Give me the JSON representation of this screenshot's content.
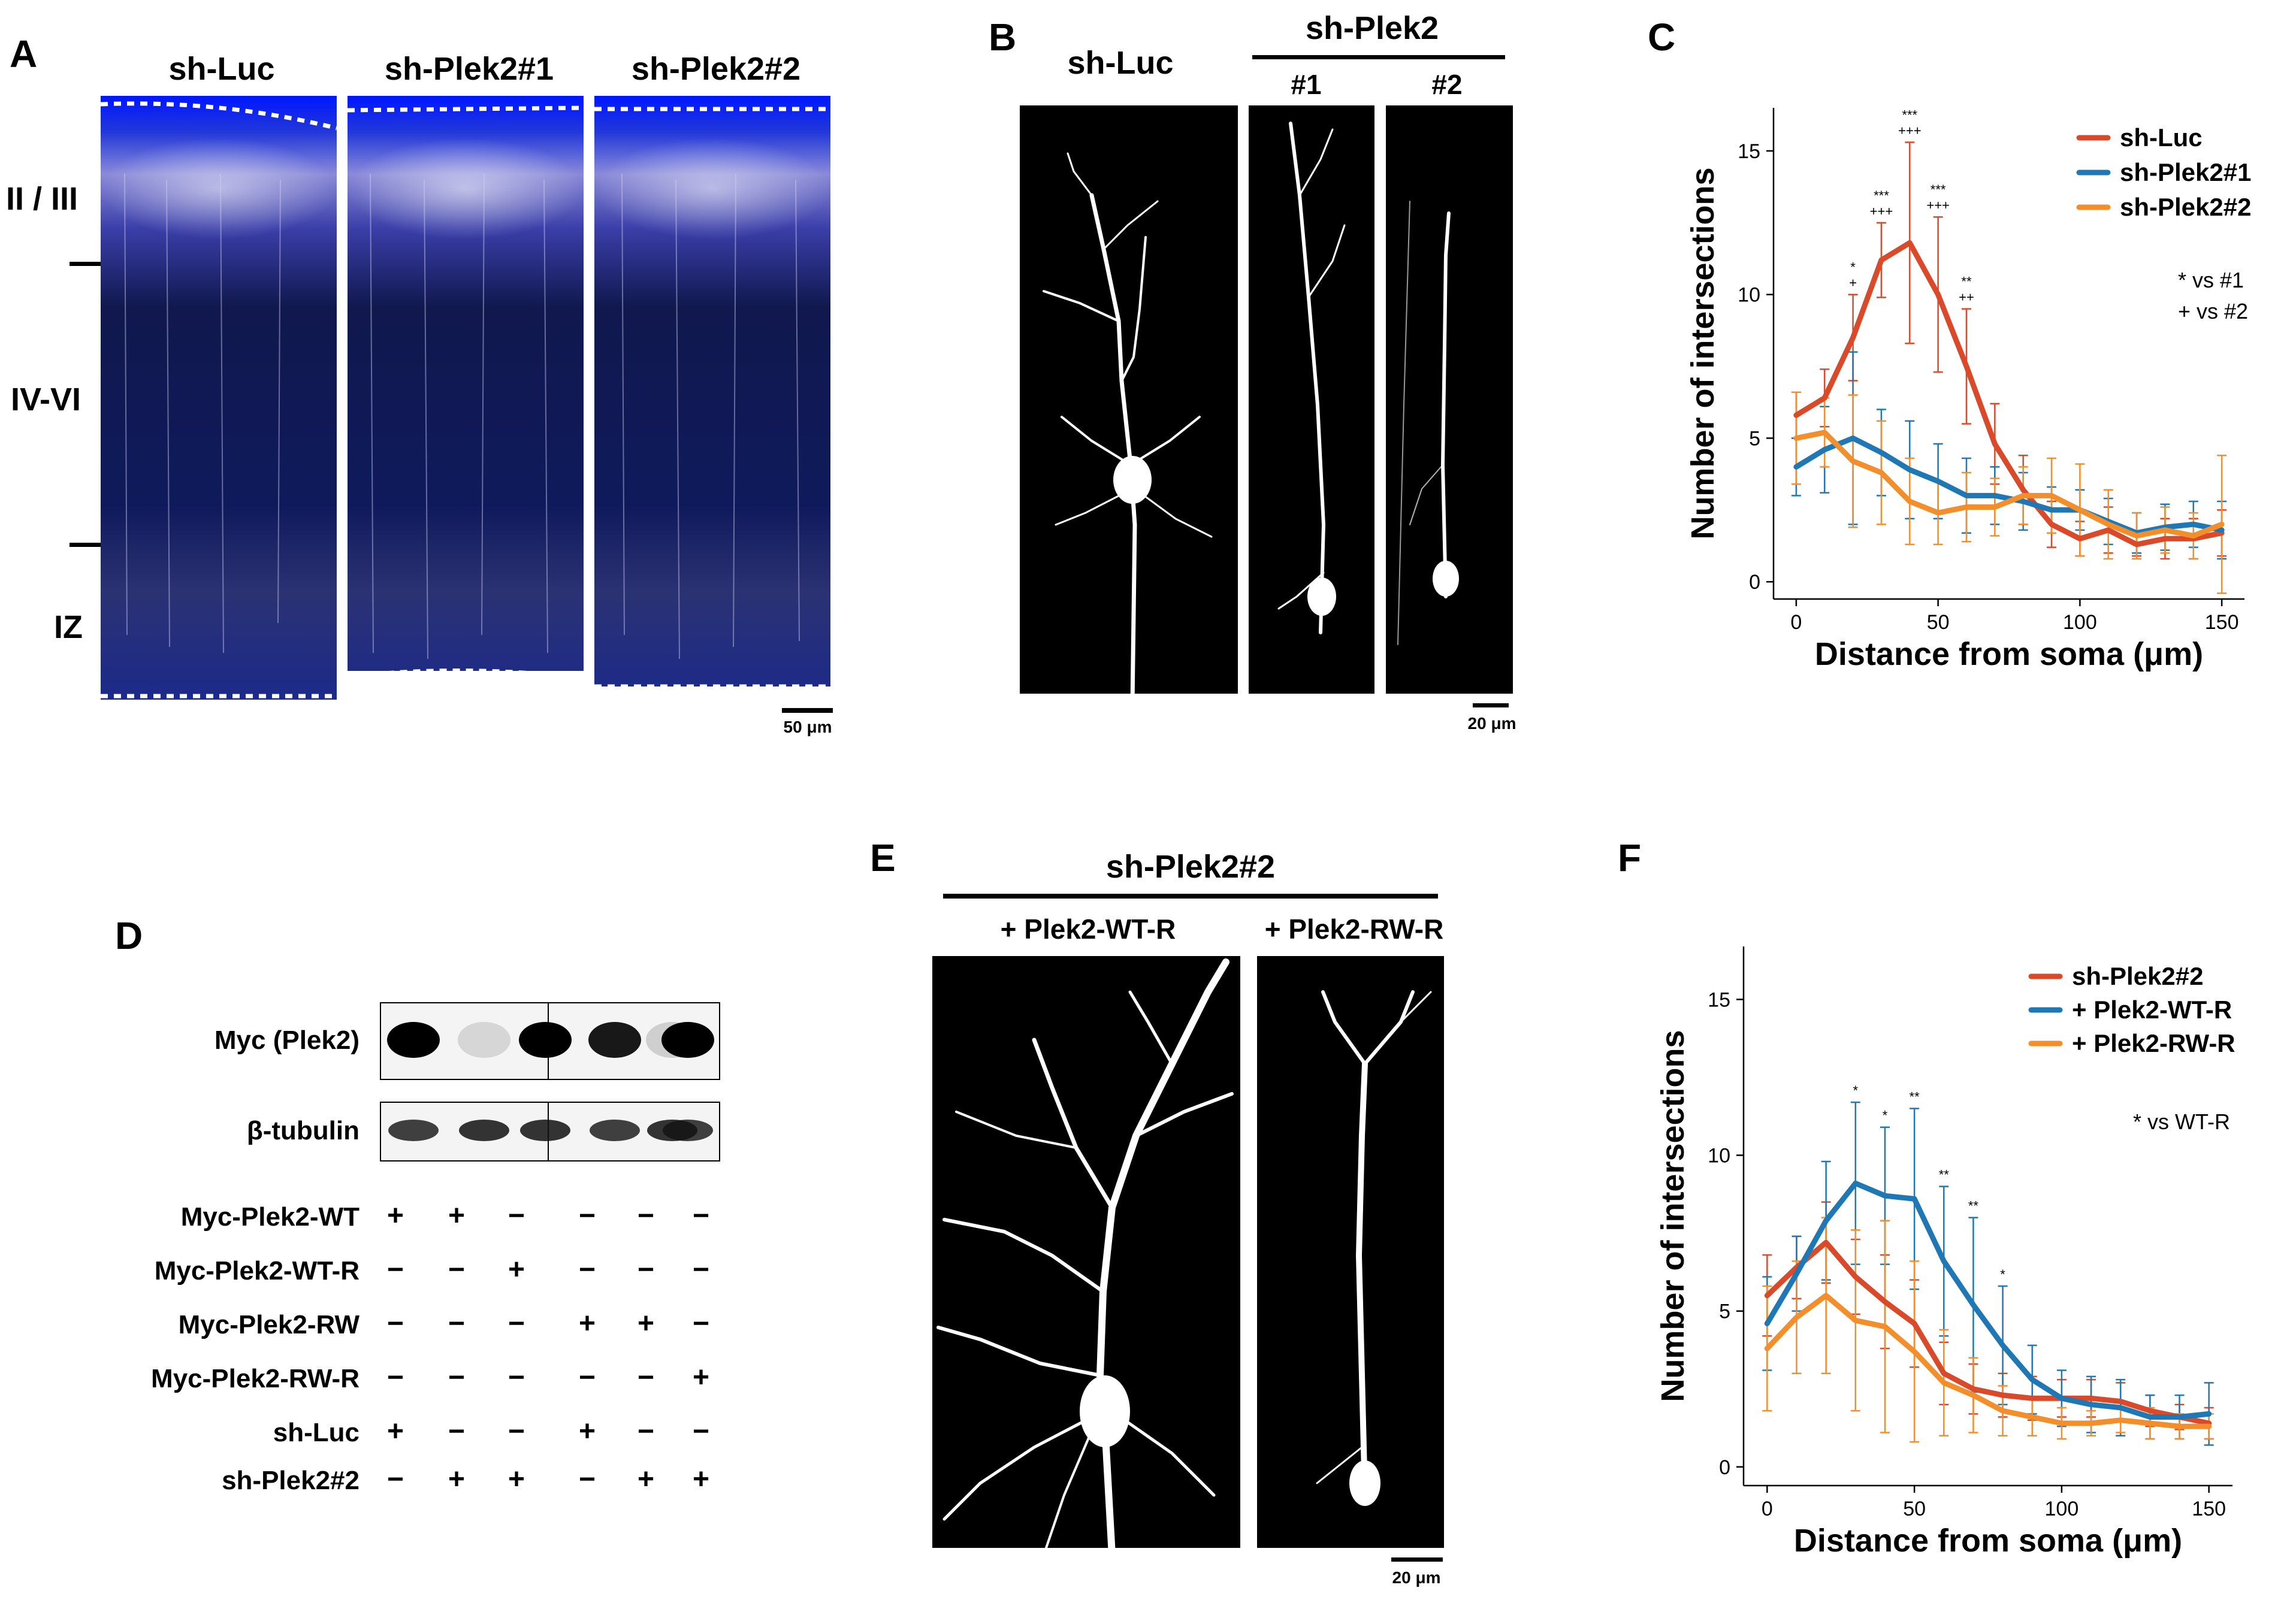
{
  "panel_letters": {
    "a": "A",
    "b": "B",
    "c": "C",
    "d": "D",
    "e": "E",
    "f": "F"
  },
  "panel_a": {
    "headers": [
      "sh-Luc",
      "sh-Plek2#1",
      "sh-Plek2#2"
    ],
    "layers": [
      "II / III",
      "IV-VI",
      "IZ"
    ],
    "scale_bar": "50 μm"
  },
  "panel_b": {
    "header_luc": "sh-Luc",
    "header_group": "sh-Plek2",
    "sub_1": "#1",
    "sub_2": "#2",
    "scale_bar": "20 μm"
  },
  "panel_d": {
    "blot_labels": [
      "Myc (Plek2)",
      "β-tubulin"
    ],
    "conditions": [
      {
        "label": "Myc-Plek2-WT",
        "values": [
          "+",
          "+",
          "−",
          "−",
          "−",
          "−"
        ]
      },
      {
        "label": "Myc-Plek2-WT-R",
        "values": [
          "−",
          "−",
          "+",
          "−",
          "−",
          "−"
        ]
      },
      {
        "label": "Myc-Plek2-RW",
        "values": [
          "−",
          "−",
          "−",
          "+",
          "+",
          "−"
        ]
      },
      {
        "label": "Myc-Plek2-RW-R",
        "values": [
          "−",
          "−",
          "−",
          "−",
          "−",
          "+"
        ]
      },
      {
        "label": "sh-Luc",
        "values": [
          "+",
          "−",
          "−",
          "+",
          "−",
          "−"
        ]
      },
      {
        "label": "sh-Plek2#2",
        "values": [
          "−",
          "+",
          "+",
          "−",
          "+",
          "+"
        ]
      }
    ],
    "myc_intensity": [
      1.0,
      0.12,
      1.0,
      0.9,
      0.15,
      1.0
    ],
    "tubulin_intensity": [
      0.8,
      0.85,
      0.85,
      0.8,
      0.85,
      0.8
    ]
  },
  "panel_e": {
    "header": "sh-Plek2#2",
    "sub_1": "+ Plek2-WT-R",
    "sub_2": "+ Plek2-RW-R",
    "scale_bar": "20 μm"
  },
  "colors": {
    "red": "#d94a2b",
    "blue": "#1f78b4",
    "orange": "#f28e2b",
    "dapi": "#1c2fb8"
  },
  "chart_data": [
    {
      "id": "C",
      "type": "line",
      "xlabel": "Distance from soma (μm)",
      "ylabel": "Number of intersections",
      "xlim": [
        -8,
        158
      ],
      "ylim": [
        -0.6,
        16.5
      ],
      "xticks": [
        0,
        50,
        100,
        150
      ],
      "yticks": [
        0,
        5,
        10,
        15
      ],
      "legend_position": "top-right",
      "x": [
        0,
        10,
        20,
        30,
        40,
        50,
        60,
        70,
        80,
        90,
        100,
        110,
        120,
        130,
        140,
        150
      ],
      "series": [
        {
          "name": "sh-Luc",
          "color": "#d94a2b",
          "values": [
            5.8,
            6.4,
            8.5,
            11.2,
            11.8,
            10.0,
            7.5,
            4.8,
            3.2,
            2.0,
            1.5,
            1.8,
            1.3,
            1.5,
            1.5,
            1.7
          ],
          "err": [
            0.8,
            1.0,
            1.5,
            1.3,
            3.5,
            2.7,
            2.0,
            1.4,
            1.2,
            0.8,
            0.6,
            0.8,
            0.4,
            0.7,
            0.7,
            0.8
          ]
        },
        {
          "name": "sh-Plek2#1",
          "color": "#1f78b4",
          "values": [
            4.0,
            4.6,
            5.0,
            4.5,
            3.9,
            3.5,
            3.0,
            3.0,
            2.8,
            2.5,
            2.5,
            2.1,
            1.7,
            1.9,
            2.0,
            1.8
          ],
          "err": [
            1.0,
            1.5,
            3.0,
            1.5,
            1.7,
            1.3,
            1.3,
            1.0,
            1.0,
            0.8,
            0.7,
            0.8,
            0.7,
            0.8,
            0.8,
            1.0
          ]
        },
        {
          "name": "sh-Plek2#2",
          "color": "#f28e2b",
          "values": [
            5.0,
            5.2,
            4.2,
            3.8,
            2.8,
            2.4,
            2.6,
            2.6,
            3.0,
            3.0,
            2.5,
            2.0,
            1.6,
            1.8,
            1.6,
            2.0
          ],
          "err": [
            1.6,
            1.2,
            2.3,
            1.8,
            1.5,
            1.1,
            1.2,
            1.0,
            1.0,
            1.3,
            1.6,
            1.2,
            0.8,
            0.8,
            0.8,
            2.4
          ]
        }
      ],
      "significance": [
        {
          "x": 20,
          "marks": [
            "*",
            "+"
          ]
        },
        {
          "x": 30,
          "marks": [
            "***",
            "+++"
          ]
        },
        {
          "x": 40,
          "marks": [
            "***",
            "+++"
          ]
        },
        {
          "x": 50,
          "marks": [
            "***",
            "+++"
          ]
        },
        {
          "x": 60,
          "marks": [
            "**",
            "++"
          ]
        }
      ],
      "annotations": [
        "* vs #1",
        "+ vs #2"
      ]
    },
    {
      "id": "F",
      "type": "line",
      "xlabel": "Distance from soma (μm)",
      "ylabel": "Number of intersections",
      "xlim": [
        -8,
        158
      ],
      "ylim": [
        -0.6,
        16.7
      ],
      "xticks": [
        0,
        50,
        100,
        150
      ],
      "yticks": [
        0,
        5,
        10,
        15
      ],
      "legend_position": "top-right",
      "x": [
        0,
        10,
        20,
        30,
        40,
        50,
        60,
        70,
        80,
        90,
        100,
        110,
        120,
        130,
        140,
        150
      ],
      "series": [
        {
          "name": "sh-Plek2#2",
          "color": "#d94a2b",
          "values": [
            5.5,
            6.4,
            7.2,
            6.1,
            5.3,
            4.6,
            3.0,
            2.5,
            2.3,
            2.2,
            2.2,
            2.2,
            2.1,
            1.8,
            1.6,
            1.4
          ],
          "err": [
            1.3,
            1.0,
            1.3,
            1.2,
            1.5,
            1.4,
            1.0,
            0.8,
            0.7,
            0.7,
            0.6,
            0.6,
            0.6,
            0.5,
            0.4,
            0.5
          ]
        },
        {
          "name": "+ Plek2-WT-R",
          "color": "#1f78b4",
          "values": [
            4.6,
            6.2,
            7.9,
            9.1,
            8.7,
            8.6,
            6.6,
            5.2,
            3.9,
            2.8,
            2.2,
            2.0,
            1.9,
            1.6,
            1.6,
            1.7
          ],
          "err": [
            1.5,
            1.2,
            1.9,
            2.6,
            2.2,
            2.9,
            2.4,
            2.8,
            1.9,
            1.1,
            0.9,
            0.9,
            0.9,
            0.7,
            0.7,
            1.0
          ]
        },
        {
          "name": "+ Plek2-RW-R",
          "color": "#f28e2b",
          "values": [
            3.8,
            4.8,
            5.5,
            4.7,
            4.5,
            3.7,
            2.7,
            2.3,
            1.8,
            1.6,
            1.4,
            1.4,
            1.5,
            1.4,
            1.3,
            1.3
          ],
          "err": [
            2.0,
            1.8,
            2.5,
            2.9,
            3.4,
            2.9,
            1.7,
            1.2,
            0.8,
            0.6,
            0.5,
            0.4,
            0.4,
            0.5,
            0.4,
            0.4
          ]
        }
      ],
      "significance": [
        {
          "x": 30,
          "marks": [
            "*"
          ]
        },
        {
          "x": 40,
          "marks": [
            "*"
          ]
        },
        {
          "x": 50,
          "marks": [
            "**"
          ]
        },
        {
          "x": 60,
          "marks": [
            "**"
          ]
        },
        {
          "x": 70,
          "marks": [
            "**"
          ]
        },
        {
          "x": 80,
          "marks": [
            "*"
          ]
        }
      ],
      "annotations": [
        "* vs WT-R"
      ]
    }
  ]
}
